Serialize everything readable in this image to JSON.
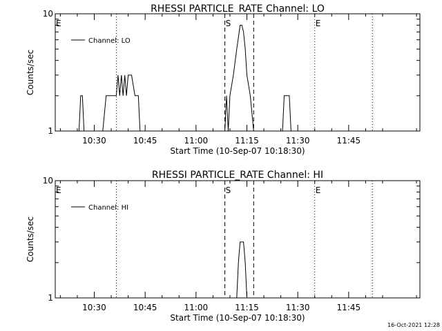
{
  "chart_data": [
    {
      "type": "line",
      "title": "RHESSI PARTICLE_RATE Channel: LO",
      "xlabel": "Start Time (10-Sep-07 10:18:30)",
      "ylabel": "Counts/sec",
      "yscale": "log",
      "ylim": [
        1,
        10
      ],
      "y_ticks": [
        "1",
        "10"
      ],
      "xlim": [
        "10:18:30",
        "12:06:00"
      ],
      "x_ticks": [
        "10:30",
        "10:45",
        "11:00",
        "11:15",
        "11:30",
        "11:45"
      ],
      "legend": "top-left",
      "series": [
        {
          "name": "Channel: LO",
          "x": [
            "10:20:00",
            "10:25:30",
            "10:26:00",
            "10:26:30",
            "10:27:00",
            "10:32:30",
            "10:33:30",
            "10:36:30",
            "10:37:00",
            "10:37:30",
            "10:38:00",
            "10:38:30",
            "10:39:00",
            "10:39:30",
            "10:40:00",
            "10:41:00",
            "10:42:00",
            "10:42:30",
            "10:43:00",
            "10:43:30",
            "11:08:30",
            "11:09:00",
            "11:09:30",
            "11:10:00",
            "11:11:00",
            "11:12:00",
            "11:13:00",
            "11:13:30",
            "11:14:00",
            "11:14:30",
            "11:15:00",
            "11:16:00",
            "11:17:00",
            "11:17:30",
            "11:25:30",
            "11:26:00",
            "11:26:30",
            "11:27:00",
            "11:27:30",
            "11:28:00"
          ],
          "y": [
            1,
            1,
            2,
            2,
            1,
            1,
            2,
            2,
            3,
            2,
            3,
            2,
            3,
            2,
            3,
            3,
            2,
            2,
            2,
            1,
            1,
            2,
            1,
            2,
            3,
            5,
            8,
            8,
            7,
            5,
            3,
            2,
            1,
            1,
            1,
            2,
            2,
            2,
            2,
            1
          ]
        }
      ],
      "markers": [
        {
          "label": "E",
          "time": "10:18:30",
          "style": "none"
        },
        {
          "label": "",
          "time": "10:36:30",
          "style": "dotted"
        },
        {
          "label": "S",
          "time": "11:08:30",
          "style": "dashed"
        },
        {
          "label": "",
          "time": "11:17:00",
          "style": "dashed"
        },
        {
          "label": "E",
          "time": "11:35:00",
          "style": "dotted"
        },
        {
          "label": "",
          "time": "11:52:00",
          "style": "dotted"
        }
      ]
    },
    {
      "type": "line",
      "title": "RHESSI PARTICLE_RATE Channel: HI",
      "xlabel": "Start Time (10-Sep-07 10:18:30)",
      "ylabel": "Counts/sec",
      "yscale": "log",
      "ylim": [
        1,
        10
      ],
      "y_ticks": [
        "1",
        "10"
      ],
      "xlim": [
        "10:18:30",
        "12:06:00"
      ],
      "x_ticks": [
        "10:30",
        "10:45",
        "11:00",
        "11:15",
        "11:30",
        "11:45"
      ],
      "legend": "top-left",
      "series": [
        {
          "name": "Channel: HI",
          "x": [
            "10:18:30",
            "11:11:30",
            "11:12:00",
            "11:12:30",
            "11:13:00",
            "11:14:00",
            "11:14:30",
            "11:15:00",
            "11:15:30",
            "12:06:00"
          ],
          "y": [
            1,
            1,
            1,
            2,
            3,
            3,
            2,
            1,
            1,
            1
          ]
        }
      ],
      "markers": [
        {
          "label": "E",
          "time": "10:18:30",
          "style": "none"
        },
        {
          "label": "",
          "time": "10:36:30",
          "style": "dotted"
        },
        {
          "label": "S",
          "time": "11:08:30",
          "style": "dashed"
        },
        {
          "label": "",
          "time": "11:17:00",
          "style": "dashed"
        },
        {
          "label": "E",
          "time": "11:35:00",
          "style": "dotted"
        },
        {
          "label": "",
          "time": "11:52:00",
          "style": "dotted"
        }
      ]
    }
  ],
  "footer": {
    "timestamp": "16-Oct-2021 12:28"
  }
}
